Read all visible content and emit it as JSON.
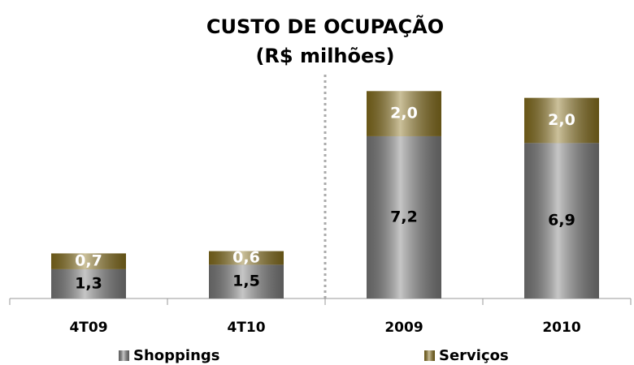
{
  "chart_data": {
    "type": "stacked_bar",
    "title": "CUSTO DE OCUPAÇÃO",
    "subtitle": "(R$ milhões)",
    "categories": [
      "4T09",
      "4T10",
      "2009",
      "2010"
    ],
    "series": [
      {
        "name": "Shoppings",
        "color": "#808080",
        "values": [
          1.3,
          1.5,
          7.2,
          6.9
        ],
        "value_labels": [
          "1,3",
          "1,5",
          "7,2",
          "6,9"
        ]
      },
      {
        "name": "Serviços",
        "color": "#8c7420",
        "values": [
          0.7,
          0.6,
          2.0,
          2.0
        ],
        "value_labels": [
          "0,7",
          "0,6",
          "2,0",
          "2,0"
        ]
      }
    ],
    "ylim": [
      0,
      9.5
    ],
    "legend": "bottom"
  }
}
